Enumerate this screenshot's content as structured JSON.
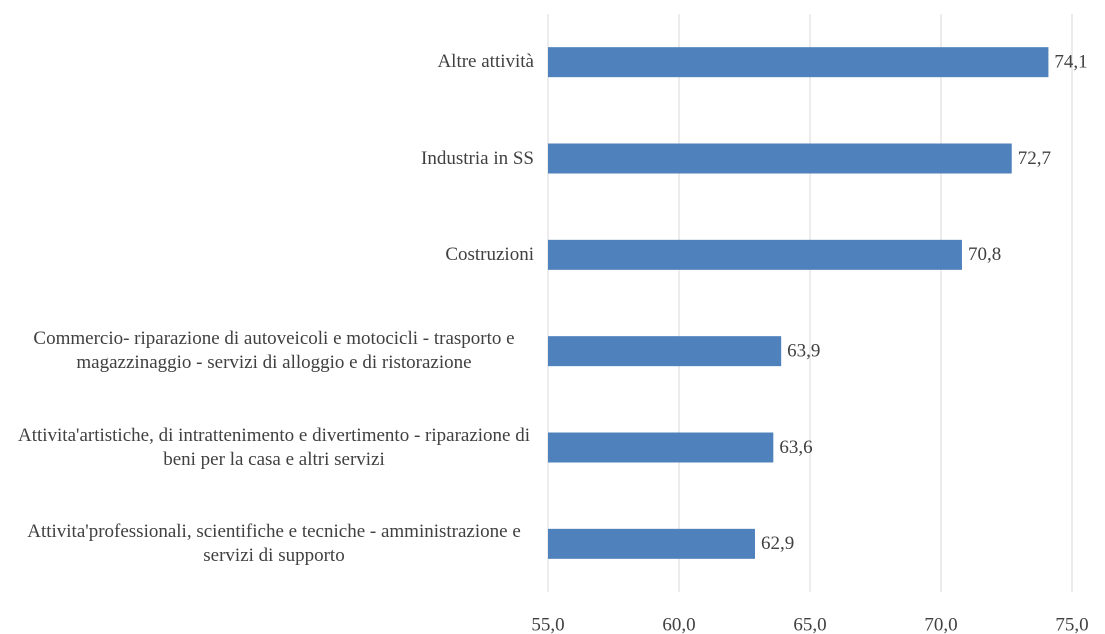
{
  "chart_data": {
    "type": "barh",
    "categories": [
      "Altre attività",
      "Industria in SS",
      "Costruzioni",
      "Commercio- riparazione di autoveicoli e motocicli - trasporto e magazzinaggio - servizi di alloggio e di ristorazione",
      "Attivita'artistiche, di intrattenimento e divertimento  - riparazione di beni per la casa e altri servizi",
      "Attivita'professionali, scientifiche e tecniche  - amministrazione e servizi di supporto"
    ],
    "values": [
      74.1,
      72.7,
      70.8,
      63.9,
      63.6,
      62.9
    ],
    "value_labels": [
      "74,1",
      "72,7",
      "70,8",
      "63,9",
      "63,6",
      "62,9"
    ],
    "color": "#4f81bd",
    "xlim": [
      55,
      75
    ],
    "xticks": [
      {
        "value": 55,
        "label": "55,0"
      },
      {
        "value": 60,
        "label": "60,0"
      },
      {
        "value": 65,
        "label": "65,0"
      },
      {
        "value": 70,
        "label": "70,0"
      },
      {
        "value": 75,
        "label": "75,0"
      }
    ],
    "grid": true
  }
}
